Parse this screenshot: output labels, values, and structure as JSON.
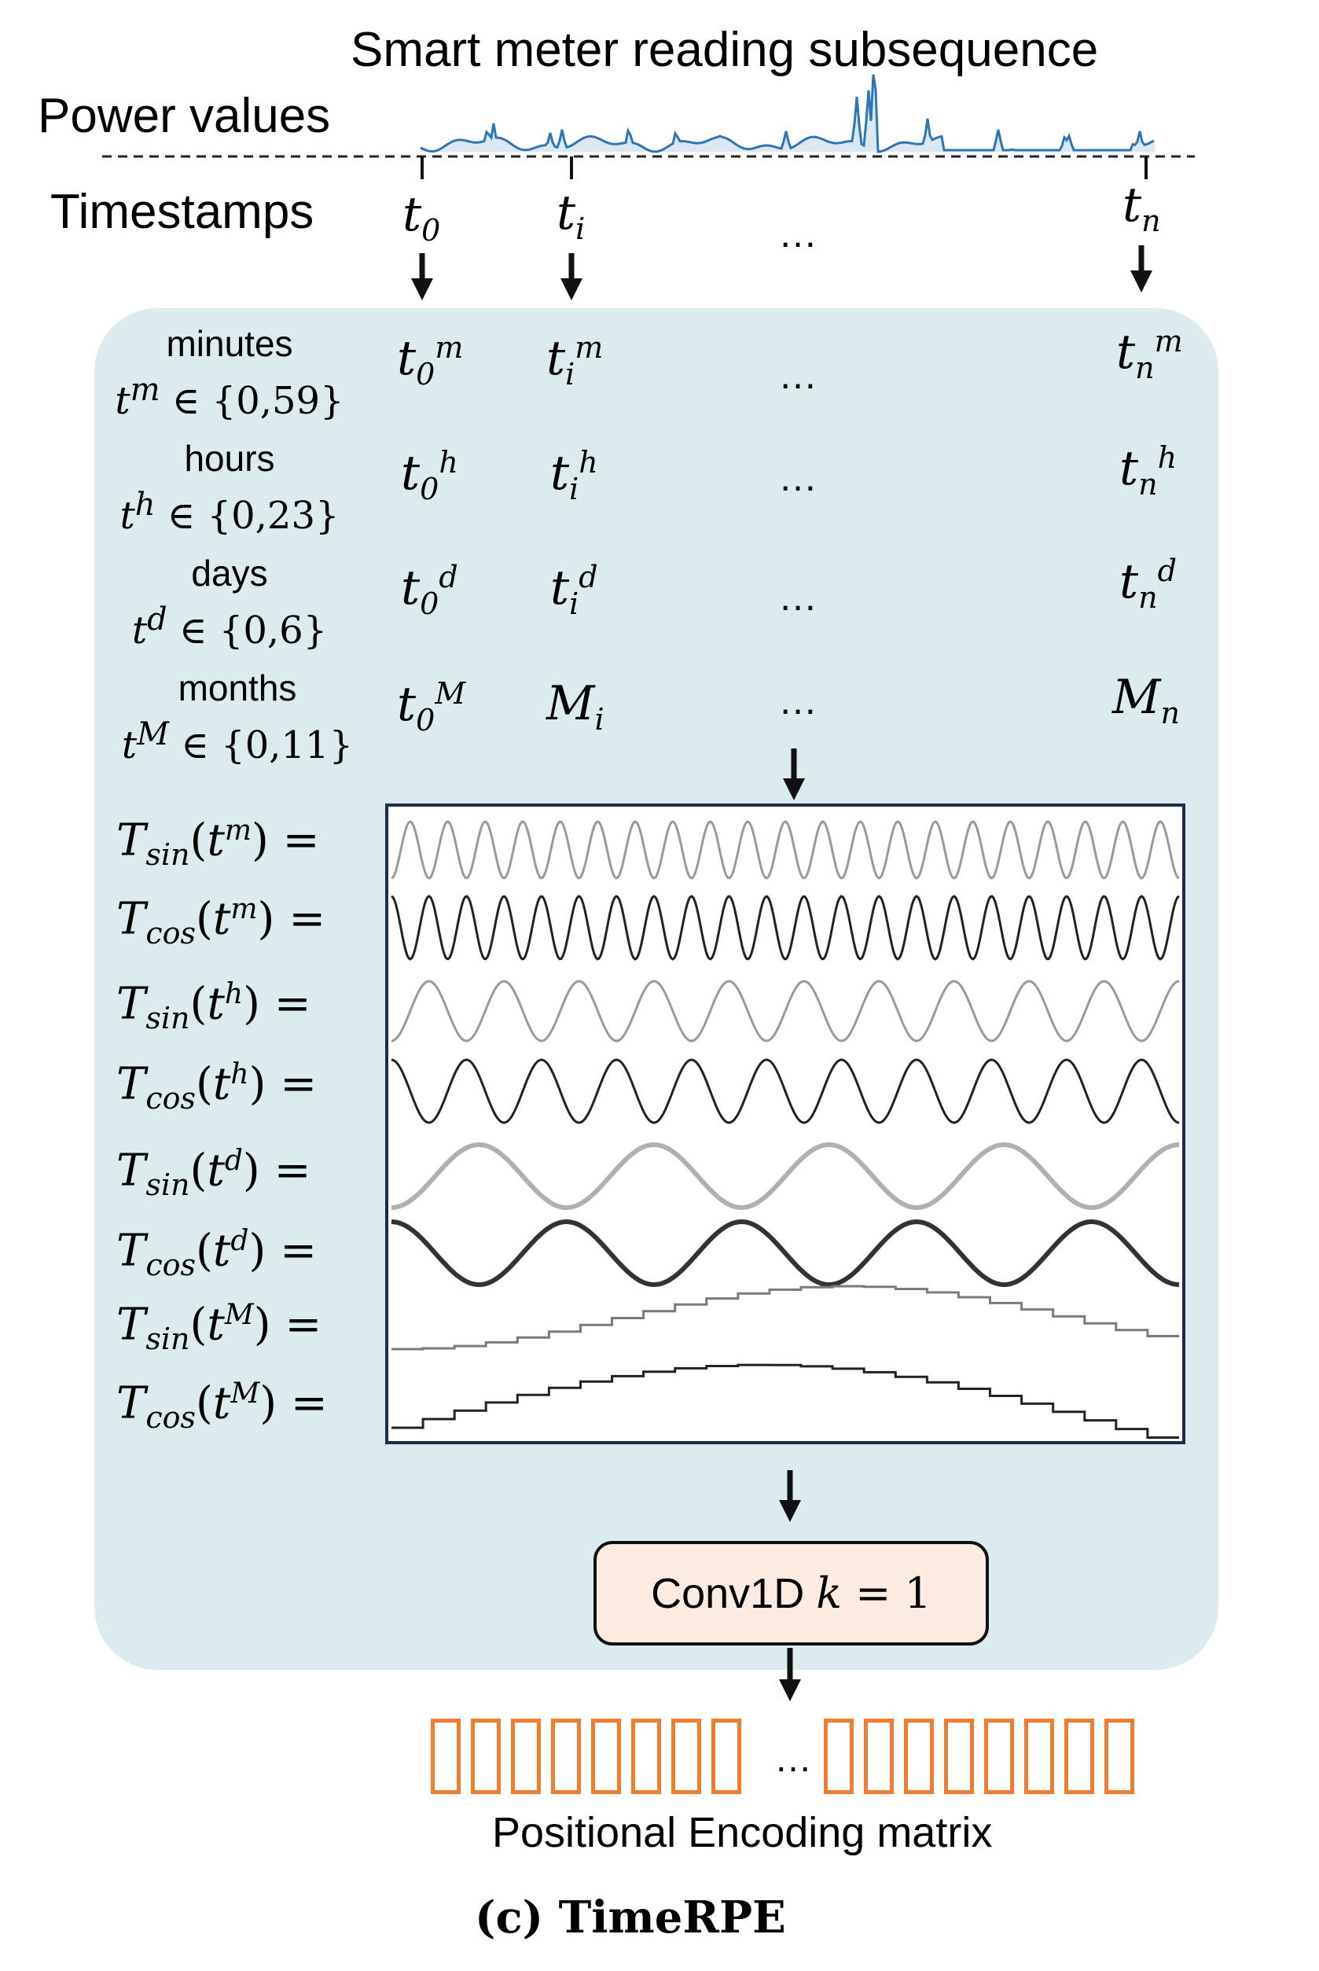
{
  "header": {
    "title": "Smart meter  reading subsequence",
    "power_label": "Power values",
    "timestamps_label": "Timestamps"
  },
  "timestamps": {
    "t0": {
      "base": "t",
      "sub": "0"
    },
    "ti": {
      "base": "t",
      "sub": "i"
    },
    "ellipsis": "…",
    "tn": {
      "base": "t",
      "sub": "n"
    }
  },
  "categories": [
    {
      "name": "minutes",
      "range_var": "t",
      "range_sup": "m",
      "range_set": "∈ {0,59}",
      "cells": [
        {
          "b": "t",
          "sub": "0",
          "sup": "m"
        },
        {
          "b": "t",
          "sub": "i",
          "sup": "m"
        },
        {
          "b": "t",
          "sub": "n",
          "sup": "m"
        }
      ]
    },
    {
      "name": "hours",
      "range_var": "t",
      "range_sup": "h",
      "range_set": "∈ {0,23}",
      "cells": [
        {
          "b": "t",
          "sub": "0",
          "sup": "h"
        },
        {
          "b": "t",
          "sub": "i",
          "sup": "h"
        },
        {
          "b": "t",
          "sub": "n",
          "sup": "h"
        }
      ]
    },
    {
      "name": "days",
      "range_var": "t",
      "range_sup": "d",
      "range_set": "∈ {0,6}",
      "cells": [
        {
          "b": "t",
          "sub": "0",
          "sup": "d"
        },
        {
          "b": "t",
          "sub": "i",
          "sup": "d"
        },
        {
          "b": "t",
          "sub": "n",
          "sup": "d"
        }
      ]
    },
    {
      "name": "months",
      "range_var": "t",
      "range_sup": "M",
      "range_set": "∈ {0,11}",
      "cells": [
        {
          "b": "t",
          "sub": "0",
          "sup": "M"
        },
        {
          "b": "M",
          "sub": "i",
          "sup": ""
        },
        {
          "b": "M",
          "sub": "n",
          "sup": ""
        }
      ]
    }
  ],
  "equations": [
    {
      "T": "T",
      "fn": "sin",
      "arg": "t",
      "sup": "m",
      "tail": ") ="
    },
    {
      "T": "T",
      "fn": "cos",
      "arg": "t",
      "sup": "m",
      "tail": ") ="
    },
    {
      "T": "T",
      "fn": "sin",
      "arg": "t",
      "sup": "h",
      "tail": ") ="
    },
    {
      "T": "T",
      "fn": "cos",
      "arg": "t",
      "sup": "h",
      "tail": ") ="
    },
    {
      "T": "T",
      "fn": "sin",
      "arg": "t",
      "sup": "d",
      "tail": ") ="
    },
    {
      "T": "T",
      "fn": "cos",
      "arg": "t",
      "sup": "d",
      "tail": ") ="
    },
    {
      "T": "T",
      "fn": "sin",
      "arg": "t",
      "sup": "M",
      "tail": ") ="
    },
    {
      "T": "T",
      "fn": "cos",
      "arg": "t",
      "sup": "M",
      "tail": ") ="
    }
  ],
  "waves": [
    {
      "kind": "sin",
      "cycles": 21,
      "color": "#9a9a9a"
    },
    {
      "kind": "cos",
      "cycles": 21,
      "color": "#222222"
    },
    {
      "kind": "sin",
      "cycles": 10.5,
      "color": "#9a9a9a"
    },
    {
      "kind": "cos",
      "cycles": 10.5,
      "color": "#222222"
    },
    {
      "kind": "sin",
      "cycles": 4.5,
      "color": "#b0b0b0"
    },
    {
      "kind": "cos",
      "cycles": 4.5,
      "color": "#333333"
    },
    {
      "kind": "step-sin",
      "steps": 12,
      "color": "#7a7a7a"
    },
    {
      "kind": "step-cos",
      "steps": 12,
      "color": "#222222"
    }
  ],
  "conv": {
    "prefix": "Conv1D ",
    "var": "k",
    "rest": " = 1"
  },
  "encoding": {
    "left_count": 8,
    "right_count": 8,
    "ellipsis": "…",
    "color": "#ee7d31",
    "caption": "Positional Encoding matrix"
  },
  "figure_caption": "(c) TimeRPE",
  "colors": {
    "panel": "#dcecee",
    "signal": "#2e75b6",
    "signal_fill": "#dbe8f4"
  }
}
